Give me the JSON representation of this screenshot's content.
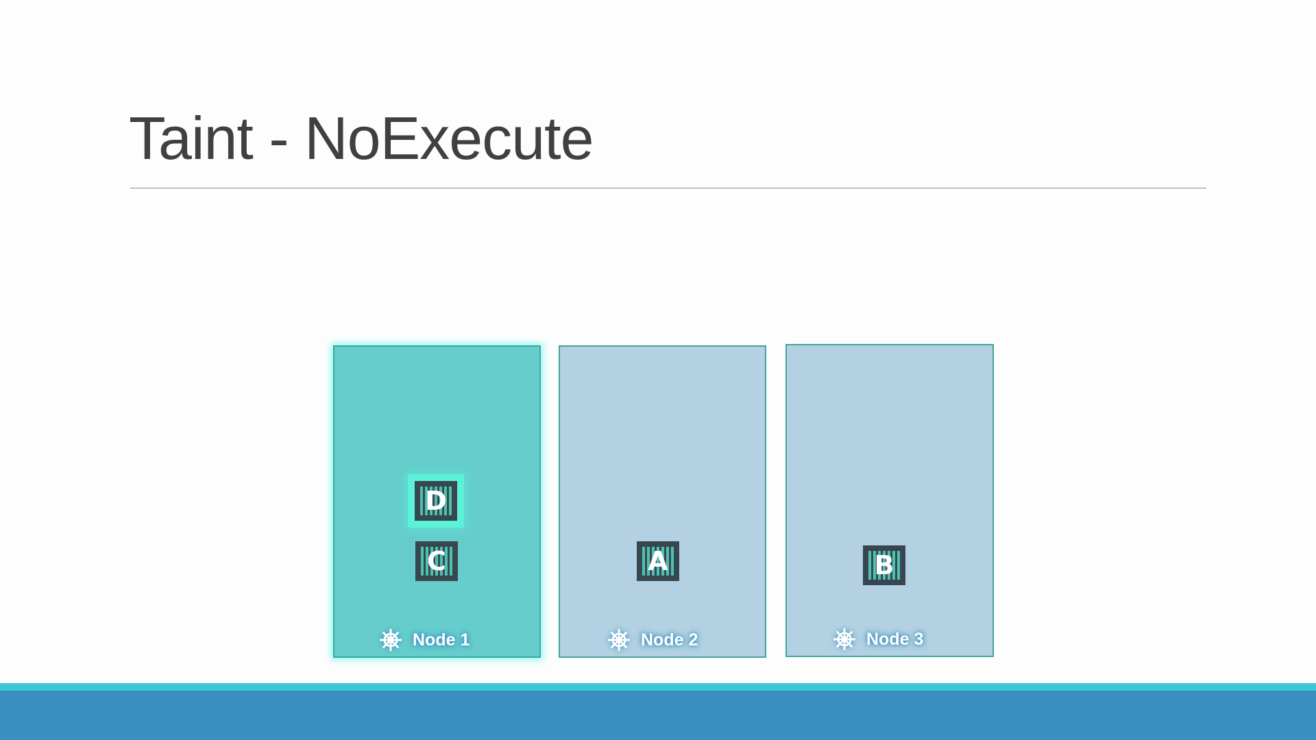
{
  "slide": {
    "title": "Taint - NoExecute"
  },
  "nodes": [
    {
      "label": "Node 1",
      "tainted": true,
      "pods": [
        "D",
        "C"
      ]
    },
    {
      "label": "Node 2",
      "tainted": false,
      "pods": [
        "A"
      ]
    },
    {
      "label": "Node 3",
      "tainted": false,
      "pods": [
        "B"
      ]
    }
  ],
  "colors": {
    "tainted_node": "#66cdcc",
    "node": "#b3d1e2",
    "accent_stripe": "#3cc8d8",
    "footer": "#3b8fc0"
  },
  "icons": {
    "node_icon": "kubernetes-helm-icon",
    "pod_icon": "container-icon"
  }
}
